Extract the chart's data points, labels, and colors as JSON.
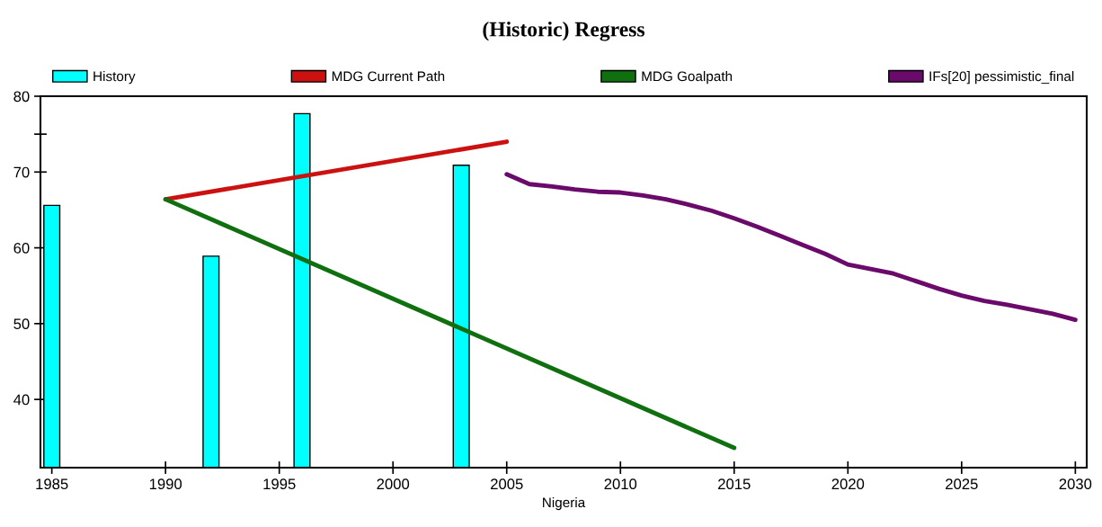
{
  "chart_data": {
    "type": "line",
    "title": "(Historic) Regress",
    "xlabel": "Nigeria",
    "xlim": [
      1984.5,
      2030.5
    ],
    "xticks": [
      1985,
      1990,
      1995,
      2000,
      2005,
      2010,
      2015,
      2020,
      2025,
      2030
    ],
    "ylim": [
      31,
      80
    ],
    "yticks": [
      40,
      50,
      60,
      70,
      {
        "value": 75,
        "label": null
      },
      80
    ],
    "grid": false,
    "legend": "top",
    "series": [
      {
        "name": "History",
        "type": "bar",
        "color": "#00ffff",
        "x": [
          1985,
          1992,
          1996,
          2003
        ],
        "values": [
          65.6,
          58.9,
          77.7,
          70.9
        ]
      },
      {
        "name": "MDG Current Path",
        "color": "#cc1111",
        "x": [
          1990,
          2005
        ],
        "values": [
          66.4,
          74.0
        ]
      },
      {
        "name": "MDG Goalpath",
        "color": "#107010",
        "x": [
          1990,
          2015
        ],
        "values": [
          66.4,
          33.6
        ]
      },
      {
        "name": "IFs[20] pessimistic_final",
        "color": "#6a0a6a",
        "x": [
          2005,
          2006,
          2007,
          2008,
          2009,
          2010,
          2011,
          2012,
          2013,
          2014,
          2015,
          2016,
          2017,
          2018,
          2019,
          2020,
          2021,
          2022,
          2023,
          2024,
          2025,
          2026,
          2027,
          2028,
          2029,
          2030
        ],
        "values": [
          69.7,
          68.4,
          68.1,
          67.7,
          67.4,
          67.3,
          66.9,
          66.4,
          65.7,
          64.9,
          63.9,
          62.8,
          61.6,
          60.4,
          59.2,
          57.8,
          57.2,
          56.6,
          55.6,
          54.6,
          53.7,
          53.0,
          52.5,
          51.9,
          51.3,
          50.5
        ]
      }
    ]
  }
}
